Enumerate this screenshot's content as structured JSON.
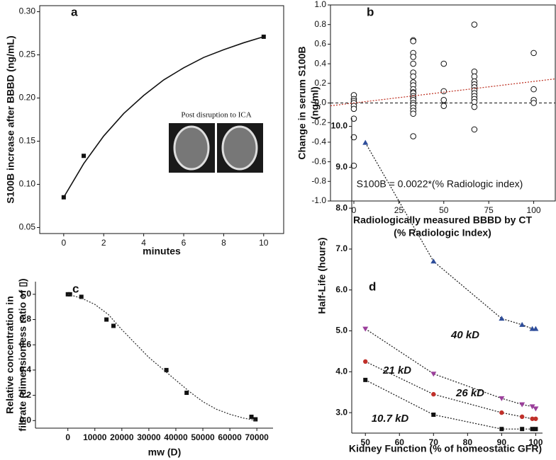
{
  "chart_data": [
    {
      "type": "line",
      "panel": "a",
      "frame": "box",
      "xlabel": "minutes",
      "ylabel": "S100B increase after BBBD (ng/mL)",
      "annotation": "Post disruption to ICA",
      "xlim": [
        -1.2,
        11
      ],
      "xticks": [
        0,
        2,
        4,
        6,
        8,
        10
      ],
      "ylim": [
        0.043,
        0.307
      ],
      "yticks": [
        0.05,
        {
          "value": 0.1,
          "label": "0.10"
        },
        0.15,
        {
          "value": 0.2,
          "label": "0.20"
        },
        0.25,
        {
          "value": 0.3,
          "label": "0.30"
        }
      ],
      "series": [
        {
          "x": [
            0,
            1,
            10
          ],
          "values": [
            0.085,
            0.133,
            0.271
          ],
          "marker": "square",
          "color": "#111111"
        },
        {
          "x": [
            0,
            1,
            2,
            3,
            4,
            5,
            6,
            7,
            8,
            9,
            10
          ],
          "values": [
            0.085,
            0.124,
            0.156,
            0.182,
            0.203,
            0.221,
            0.235,
            0.247,
            0.256,
            0.264,
            0.271
          ],
          "line": "solid",
          "color": "#111111"
        }
      ]
    },
    {
      "type": "scatter",
      "panel": "b",
      "frame": "box",
      "xlabel": [
        "Radiologically measured BBBD by CT",
        "(% Radiologic Index)"
      ],
      "ylabel": [
        "Change in serum S100B",
        "(ng/ml)"
      ],
      "annotation": "S100B = 0.0022*(% Radiologic index)",
      "xlim": [
        -13,
        112
      ],
      "xticks": [
        0,
        25,
        50,
        75,
        100
      ],
      "ylim": [
        -1.0,
        1.0
      ],
      "yticks": [
        {
          "value": -1.0,
          "label": "-1.0"
        },
        -0.8,
        -0.6,
        -0.4,
        -0.2,
        {
          "value": 0,
          "label": "0.0"
        },
        0.2,
        0.4,
        0.6,
        0.8,
        {
          "value": 1.0,
          "label": "1.0"
        }
      ],
      "hline": 0,
      "series": [
        {
          "x": [
            0,
            0,
            0,
            0,
            0,
            0,
            0,
            0,
            0,
            33,
            33,
            33,
            33,
            33,
            33,
            33,
            33,
            33,
            33,
            33,
            33,
            33,
            33,
            33,
            33,
            33,
            33,
            33,
            33,
            33,
            50,
            50,
            50,
            50,
            67,
            67,
            67,
            67,
            67,
            67,
            67,
            67,
            67,
            67,
            67,
            67,
            67,
            100,
            100,
            100,
            100
          ],
          "values": [
            0.08,
            0.04,
            0.02,
            0.0,
            -0.03,
            -0.06,
            -0.16,
            -0.35,
            -0.64,
            0.64,
            0.63,
            0.51,
            0.47,
            0.4,
            0.31,
            0.27,
            0.21,
            0.18,
            0.14,
            0.11,
            0.1,
            0.07,
            0.05,
            0.03,
            0.0,
            -0.02,
            -0.05,
            -0.08,
            -0.11,
            -0.34,
            0.4,
            0.12,
            0.03,
            -0.03,
            0.8,
            0.32,
            0.27,
            0.22,
            0.19,
            0.16,
            0.13,
            0.1,
            0.07,
            0.04,
            0.01,
            -0.04,
            -0.27,
            0.51,
            0.14,
            0.03,
            0.0
          ],
          "marker": "open-circle",
          "color": "#111111"
        },
        {
          "x": [
            -13,
            112
          ],
          "values": [
            -0.029,
            0.246
          ],
          "line": "dotted",
          "color": "#c0392b"
        }
      ]
    },
    {
      "type": "line",
      "panel": "c",
      "frame": "axes",
      "xlabel": "mw (D)",
      "ylabel": [
        "Relative concentration in",
        "filtrate (dimensionless ratio of ▯)"
      ],
      "xlim": [
        -12000,
        76000
      ],
      "xticks": [
        0,
        10000,
        20000,
        30000,
        40000,
        50000,
        60000,
        70000
      ],
      "ylim": [
        -0.06,
        1.1
      ],
      "yticks": [
        {
          "value": 0,
          "label": "0.0"
        },
        0.2,
        0.4,
        0.6,
        0.8,
        {
          "value": 1.0,
          "label": "1.0"
        }
      ],
      "series": [
        {
          "x": [
            0,
            800,
            5000,
            14300,
            16900,
            36500,
            44000,
            68000,
            69500
          ],
          "values": [
            1.0,
            1.0,
            0.98,
            0.8,
            0.75,
            0.4,
            0.22,
            0.03,
            0.01
          ],
          "marker": "square",
          "color": "#111111"
        },
        {
          "x": [
            0,
            5000,
            10000,
            15000,
            20000,
            25000,
            30000,
            35000,
            40000,
            45000,
            50000,
            55000,
            60000,
            65000,
            70000
          ],
          "values": [
            1.0,
            0.97,
            0.92,
            0.84,
            0.72,
            0.61,
            0.5,
            0.41,
            0.32,
            0.23,
            0.15,
            0.09,
            0.05,
            0.02,
            0.0
          ],
          "line": "dotted",
          "color": "#333333"
        }
      ]
    },
    {
      "type": "line",
      "panel": "d",
      "frame": "axes",
      "xlabel": "Kidney Function (% of homeostatic GFR)",
      "ylabel": "Half-Life (hours)",
      "xlim": [
        46,
        102
      ],
      "xticks": [
        50,
        60,
        70,
        80,
        90,
        100
      ],
      "ylim": [
        2.5,
        10.2
      ],
      "yticks": [
        {
          "value": 3,
          "label": "3.0"
        },
        {
          "value": 4,
          "label": "4.0"
        },
        {
          "value": 5,
          "label": "5.0"
        },
        {
          "value": 6,
          "label": "6.0"
        },
        {
          "value": 7,
          "label": "7.0"
        },
        {
          "value": 8,
          "label": "8.0"
        },
        {
          "value": 9,
          "label": "9.0"
        },
        {
          "value": 10,
          "label": "10.0"
        }
      ],
      "series": [
        {
          "name": "40 kD",
          "x": [
            50,
            70,
            90,
            96,
            99,
            100
          ],
          "values": [
            9.6,
            6.7,
            5.3,
            5.15,
            5.05,
            5.05
          ],
          "marker": "triangle",
          "color": "#2e4d9a",
          "line": "dotted",
          "line_color": "#222222"
        },
        {
          "name": "21 kD",
          "x": [
            50,
            70,
            90,
            96,
            99,
            100
          ],
          "values": [
            5.05,
            3.95,
            3.35,
            3.2,
            3.15,
            3.1
          ],
          "marker": "triangle-down",
          "color": "#9b3f9b",
          "line": "dotted",
          "line_color": "#222222"
        },
        {
          "name": "26 kD",
          "x": [
            50,
            70,
            90,
            96,
            99,
            100
          ],
          "values": [
            4.25,
            3.45,
            3.0,
            2.9,
            2.85,
            2.85
          ],
          "marker": "circle",
          "color": "#c0302a",
          "line": "dotted",
          "line_color": "#222222"
        },
        {
          "name": "10.7 kD",
          "x": [
            50,
            70,
            90,
            96,
            99,
            100
          ],
          "values": [
            3.8,
            2.95,
            2.6,
            2.6,
            2.6,
            2.6
          ],
          "marker": "square",
          "color": "#111111",
          "line": "dotted",
          "line_color": "#222222"
        }
      ]
    }
  ]
}
